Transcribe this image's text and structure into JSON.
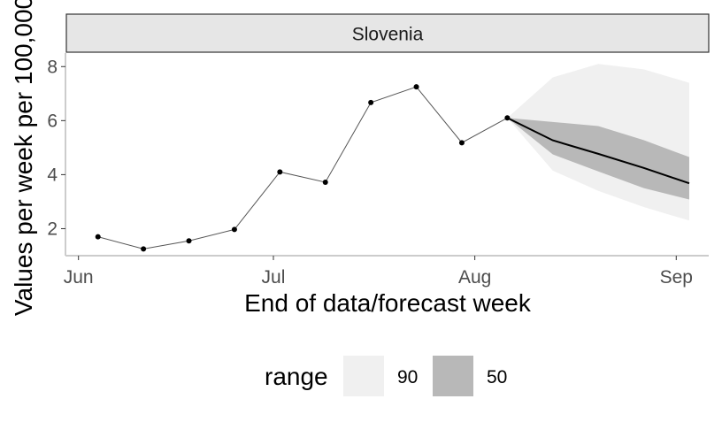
{
  "chart_data": {
    "type": "line",
    "facet": "Slovenia",
    "xlabel": "End of data/forecast week",
    "ylabel": "Values per week per 100,000",
    "x_ticks": [
      "Jun",
      "Jul",
      "Aug",
      "Sep"
    ],
    "x_tick_dates": [
      "2021-06-01",
      "2021-07-01",
      "2021-08-01",
      "2021-09-01"
    ],
    "xlim": [
      "2021-05-30",
      "2021-09-06"
    ],
    "y_ticks": [
      2,
      4,
      6,
      8
    ],
    "ylim": [
      1.0,
      8.5
    ],
    "grid": false,
    "observed": {
      "x": [
        "2021-06-04",
        "2021-06-11",
        "2021-06-18",
        "2021-06-25",
        "2021-07-02",
        "2021-07-09",
        "2021-07-16",
        "2021-07-23",
        "2021-07-30",
        "2021-08-06"
      ],
      "values": [
        1.7,
        1.25,
        1.55,
        1.97,
        4.1,
        3.72,
        6.67,
        7.25,
        5.18,
        6.1
      ]
    },
    "forecast": {
      "x": [
        "2021-08-06",
        "2021-08-13",
        "2021-08-20",
        "2021-08-27",
        "2021-09-03"
      ],
      "median": [
        6.1,
        5.27,
        4.77,
        4.25,
        3.68
      ],
      "range_90": {
        "lower": [
          6.1,
          4.15,
          3.4,
          2.8,
          2.3
        ],
        "upper": [
          6.1,
          7.6,
          8.1,
          7.9,
          7.4
        ]
      },
      "range_50": {
        "lower": [
          6.1,
          4.75,
          4.12,
          3.5,
          3.08
        ],
        "upper": [
          6.1,
          5.95,
          5.8,
          5.28,
          4.65
        ]
      }
    },
    "legend": {
      "title": "range",
      "position": "bottom",
      "entries": [
        {
          "label": "90",
          "color": "#f0f0f0"
        },
        {
          "label": "50",
          "color": "#b8b8b8"
        }
      ]
    },
    "colors": {
      "observed_line": "#555555",
      "point": "#000000",
      "median_line": "#000000",
      "band_90": "#f0f0f0",
      "band_50": "#b8b8b8",
      "strip_fill": "#e6e6e6",
      "axis": "#cccccc"
    }
  }
}
